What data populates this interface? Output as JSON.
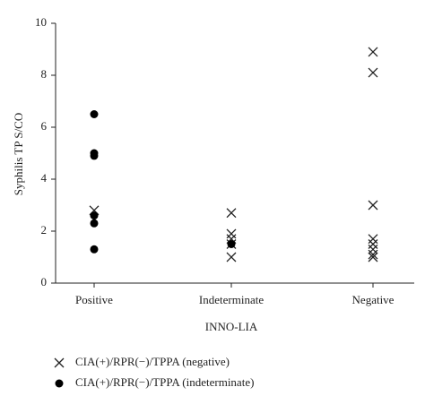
{
  "chart_data": {
    "type": "scatter",
    "x_label": "INNO-LIA",
    "y_label": "Syphilis TP S/CO",
    "categories": [
      "Positive",
      "Indeterminate",
      "Negative"
    ],
    "ylim": [
      0,
      10
    ],
    "yticks": [
      0,
      2,
      4,
      6,
      8,
      10
    ],
    "series": [
      {
        "name": "CIA(+)/RPR(−)/TPPA (negative)",
        "marker": "cross",
        "color": "#222222",
        "x": [
          "Positive",
          "Indeterminate",
          "Indeterminate",
          "Indeterminate",
          "Indeterminate",
          "Indeterminate",
          "Negative",
          "Negative",
          "Negative",
          "Negative",
          "Negative",
          "Negative",
          "Negative",
          "Negative"
        ],
        "values": [
          2.8,
          2.7,
          1.9,
          1.7,
          1.5,
          1.0,
          8.9,
          8.1,
          3.0,
          1.7,
          1.5,
          1.3,
          1.1,
          1.0
        ]
      },
      {
        "name": "CIA(+)/RPR(−)/TPPA (indeterminate)",
        "marker": "dot",
        "color": "#000000",
        "x": [
          "Positive",
          "Positive",
          "Positive",
          "Positive",
          "Positive",
          "Positive",
          "Indeterminate"
        ],
        "values": [
          6.5,
          5.0,
          4.9,
          2.6,
          2.3,
          1.3,
          1.5
        ]
      }
    ]
  }
}
